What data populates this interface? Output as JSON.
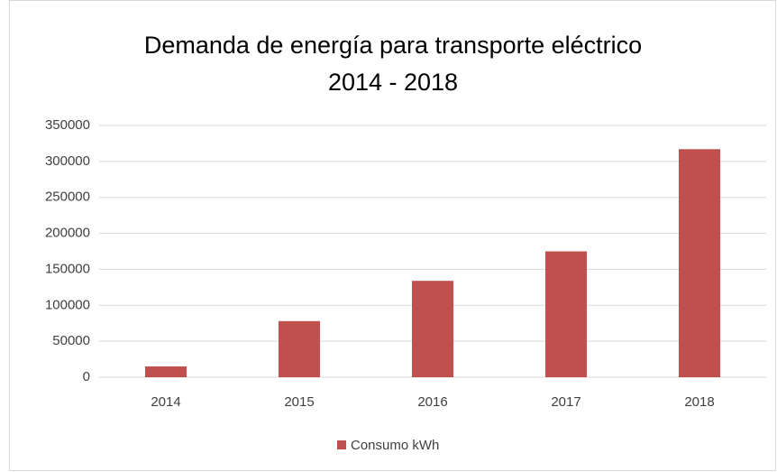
{
  "chart_data": {
    "type": "bar",
    "title": [
      "Demanda de energía para transporte eléctrico",
      "2014 - 2018"
    ],
    "categories": [
      "2014",
      "2015",
      "2016",
      "2017",
      "2018"
    ],
    "series": [
      {
        "name": "Consumo kWh",
        "color": "#c0504d",
        "values": [
          15000,
          78000,
          134000,
          175000,
          317000
        ]
      }
    ],
    "ylim": [
      0,
      350000
    ],
    "yticks": [
      0,
      50000,
      100000,
      150000,
      200000,
      250000,
      300000,
      350000
    ],
    "grid": true,
    "legend": "bottom"
  }
}
